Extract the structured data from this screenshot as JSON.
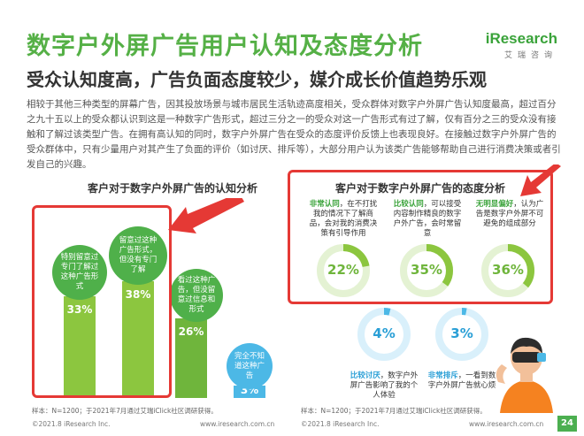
{
  "header": {
    "title": "数字户外屏广告用户认知及态度分析",
    "subtitle": "受众认知度高，广告负面态度较少，媒介成长价值趋势乐观",
    "logo_name": "Research",
    "logo_prefix": "i",
    "logo_sub": "艾瑞咨询"
  },
  "body_text": "相较于其他三种类型的屏幕广告，因其投放场景与城市居民生活轨迹高度相关，受众群体对数字户外屏广告认知度最高，超过百分之九十五以上的受众都认识到这是一种数字广告形式，超过三分之一的受众对这一广告形式有过了解，仅有百分之三的受众没有接触和了解过该类型广告。在拥有高认知的同时，数字户外屏广告在受众的态度评价反馈上也表现良好。在接触过数字户外屏广告的受众群体中，只有少量用户对其产生了负面的评价（如讨厌、排斥等），大部分用户认为该类广告能够帮助自己进行消费决策或者引发自己的兴趣。",
  "chart_data": [
    {
      "type": "bar",
      "title": "客户对于数字户外屏广告的认知分析",
      "categories": [
        "特别留意过专门了解过这种广告形式",
        "留意过这种广告形式，但没有专门了解",
        "看过这种广告，但没留意过信息和形式",
        "完全不知道这种广告"
      ],
      "values": [
        33,
        38,
        26,
        3
      ],
      "value_labels": [
        "33%",
        "38%",
        "26%",
        "3%"
      ],
      "source": "样本：N=1200；于2021年7月通过艾瑞iClick社区调研获得。"
    },
    {
      "type": "pie",
      "title": "客户对于数字户外屏广告的态度分析",
      "items": [
        {
          "label_strong": "非常认同",
          "label_rest": "，在不打扰我的情况下了解商品，会对我的消费决策有引导作用",
          "value": 22,
          "value_label": "22%",
          "tone": "positive"
        },
        {
          "label_strong": "比较认同",
          "label_rest": "，可以接受内容制作精良的数字户外广告，会时常留意",
          "value": 35,
          "value_label": "35%",
          "tone": "positive"
        },
        {
          "label_strong": "无明显偏好",
          "label_rest": "，认为广告是数字户外屏不可避免的组成部分",
          "value": 36,
          "value_label": "36%",
          "tone": "positive"
        },
        {
          "label_strong": "比较讨厌",
          "label_rest": "，数字户外屏广告影响了我的个人体验",
          "value": 4,
          "value_label": "4%",
          "tone": "negative"
        },
        {
          "label_strong": "非常排斥",
          "label_rest": "，一看到数字户外屏广告就心烦",
          "value": 3,
          "value_label": "3%",
          "tone": "negative"
        }
      ],
      "source": "样本：N=1200；于2021年7月通过艾瑞iClick社区调研获得。"
    }
  ],
  "footer": {
    "left": "©2021.8 iResearch Inc.",
    "mid_left": "www.iresearch.com.cn",
    "mid_right": "©2021.8 iResearch Inc.",
    "right": "www.iresearch.com.cn",
    "page": "24"
  },
  "colors": {
    "brand_green": "#55b046",
    "bar_green": "#8cc63f",
    "bubble_green": "#4fb04a",
    "ring_green": "#8cc63f",
    "ring_blue": "#4cb8e6",
    "alert_red": "#e53935"
  }
}
